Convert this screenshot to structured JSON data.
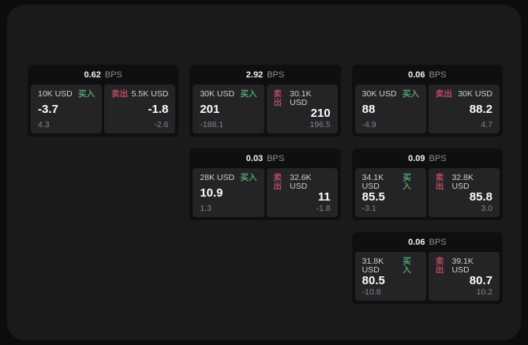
{
  "labels": {
    "bps_suffix": "BPS",
    "buy": "买入",
    "sell": "卖出"
  },
  "colors": {
    "buy": "#4FA06C",
    "sell": "#B54A5F",
    "surface": "#1A1A1C",
    "card": "#0F0F10",
    "tile": "#242427"
  },
  "cards": [
    {
      "bps": "0.62",
      "buy": {
        "size": "10K USD",
        "price": "-3.7",
        "delta": "4.3"
      },
      "sell": {
        "size": "5.5K USD",
        "price": "-1.8",
        "delta": "-2.6"
      }
    },
    {
      "bps": "2.92",
      "buy": {
        "size": "30K USD",
        "price": "201",
        "delta": "-188.1"
      },
      "sell": {
        "size": "30.1K USD",
        "price": "210",
        "delta": "196.5"
      }
    },
    {
      "bps": "0.06",
      "buy": {
        "size": "30K USD",
        "price": "88",
        "delta": "-4.9"
      },
      "sell": {
        "size": "30K USD",
        "price": "88.2",
        "delta": "4.7"
      }
    },
    {
      "bps": "0.03",
      "buy": {
        "size": "28K USD",
        "price": "10.9",
        "delta": "1.3"
      },
      "sell": {
        "size": "32.6K USD",
        "price": "11",
        "delta": "-1.8"
      }
    },
    {
      "bps": "0.09",
      "buy": {
        "size": "34.1K USD",
        "price": "85.5",
        "delta": "-3.1"
      },
      "sell": {
        "size": "32.8K USD",
        "price": "85.8",
        "delta": "3.0"
      }
    },
    {
      "bps": "0.06",
      "buy": {
        "size": "31.8K USD",
        "price": "80.5",
        "delta": "-10.8"
      },
      "sell": {
        "size": "39.1K USD",
        "price": "80.7",
        "delta": "10.2"
      }
    }
  ]
}
